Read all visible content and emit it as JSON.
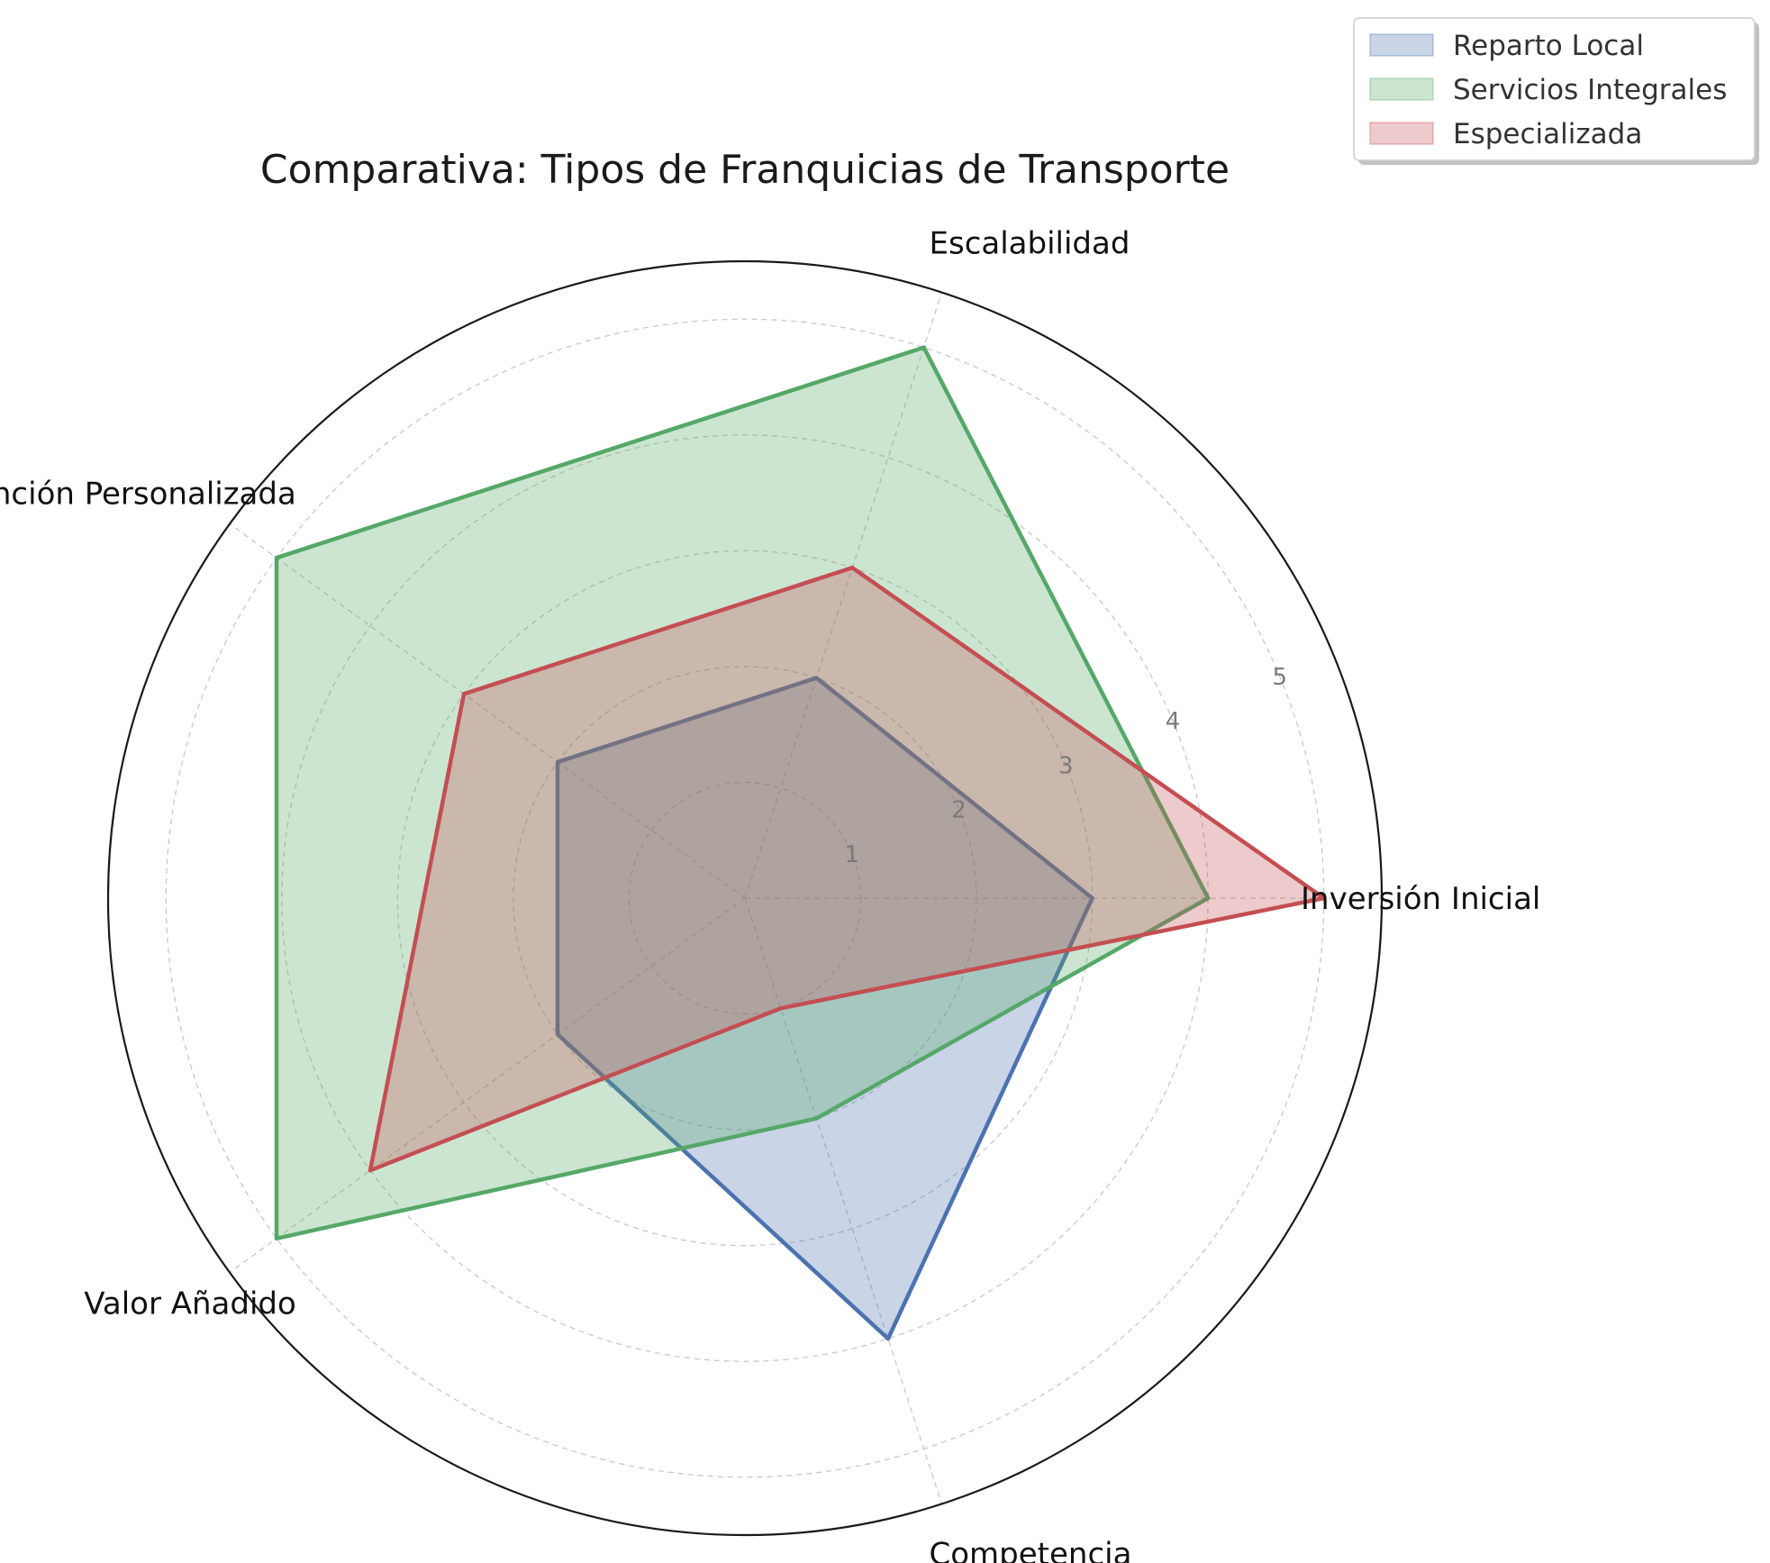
{
  "chart_data": {
    "type": "radar",
    "title": "Comparativa: Tipos de Franquicias de Transporte",
    "axes": [
      "Inversión Inicial",
      "Escalabilidad",
      "Atención Personalizada",
      "Valor Añadido",
      "Competencia"
    ],
    "rlim": [
      0,
      5.5
    ],
    "r_ticks": [
      1,
      2,
      3,
      4,
      5
    ],
    "r_tick_labels": [
      "1",
      "2",
      "3",
      "4",
      "5"
    ],
    "grid": true,
    "legend_position": "top-right",
    "series": [
      {
        "name": "Reparto Local",
        "color": "#4c72b0",
        "values": [
          3,
          2,
          2,
          2,
          4
        ]
      },
      {
        "name": "Servicios Integrales",
        "color": "#55a868",
        "values": [
          4,
          5,
          5,
          5,
          2
        ]
      },
      {
        "name": "Especializada",
        "color": "#c44e52",
        "values": [
          5,
          3,
          3,
          4,
          1
        ]
      }
    ]
  }
}
